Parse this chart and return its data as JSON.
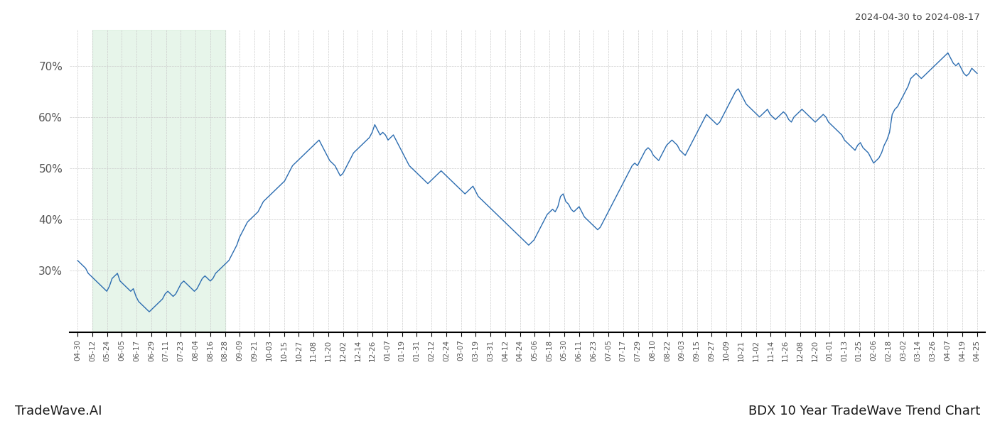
{
  "title_right": "2024-04-30 to 2024-08-17",
  "label_left": "TradeWave.AI",
  "label_right": "BDX 10 Year TradeWave Trend Chart",
  "line_color": "#2b6cb0",
  "shade_color": "#d4edda",
  "shade_alpha": 0.55,
  "background_color": "#ffffff",
  "grid_color": "#cccccc",
  "ylim": [
    18,
    77
  ],
  "yticks": [
    30,
    40,
    50,
    60,
    70
  ],
  "x_labels": [
    "04-30",
    "05-12",
    "05-24",
    "06-05",
    "06-17",
    "06-29",
    "07-11",
    "07-23",
    "08-04",
    "08-16",
    "08-28",
    "09-09",
    "09-21",
    "10-03",
    "10-15",
    "10-27",
    "11-08",
    "11-20",
    "12-02",
    "12-14",
    "12-26",
    "01-07",
    "01-19",
    "01-31",
    "02-12",
    "02-24",
    "03-07",
    "03-19",
    "03-31",
    "04-12",
    "04-24",
    "05-06",
    "05-18",
    "05-30",
    "06-11",
    "06-23",
    "07-05",
    "07-17",
    "07-29",
    "08-10",
    "08-22",
    "09-03",
    "09-15",
    "09-27",
    "10-09",
    "10-21",
    "11-02",
    "11-14",
    "11-26",
    "12-08",
    "12-20",
    "01-01",
    "01-13",
    "01-25",
    "02-06",
    "02-18",
    "03-02",
    "03-14",
    "03-26",
    "04-07",
    "04-19",
    "04-25"
  ],
  "shade_start_label": "05-12",
  "shade_end_label": "08-28",
  "y_values": [
    32.0,
    31.5,
    31.0,
    30.5,
    29.5,
    29.0,
    28.5,
    28.0,
    27.5,
    27.0,
    26.5,
    26.0,
    27.0,
    28.5,
    29.0,
    29.5,
    28.0,
    27.5,
    27.0,
    26.5,
    26.0,
    26.5,
    25.0,
    24.0,
    23.5,
    23.0,
    22.5,
    22.0,
    22.5,
    23.0,
    23.5,
    24.0,
    24.5,
    25.5,
    26.0,
    25.5,
    25.0,
    25.5,
    26.5,
    27.5,
    28.0,
    27.5,
    27.0,
    26.5,
    26.0,
    26.5,
    27.5,
    28.5,
    29.0,
    28.5,
    28.0,
    28.5,
    29.5,
    30.0,
    30.5,
    31.0,
    31.5,
    32.0,
    33.0,
    34.0,
    35.0,
    36.5,
    37.5,
    38.5,
    39.5,
    40.0,
    40.5,
    41.0,
    41.5,
    42.5,
    43.5,
    44.0,
    44.5,
    45.0,
    45.5,
    46.0,
    46.5,
    47.0,
    47.5,
    48.5,
    49.5,
    50.5,
    51.0,
    51.5,
    52.0,
    52.5,
    53.0,
    53.5,
    54.0,
    54.5,
    55.0,
    55.5,
    54.5,
    53.5,
    52.5,
    51.5,
    51.0,
    50.5,
    49.5,
    48.5,
    49.0,
    50.0,
    51.0,
    52.0,
    53.0,
    53.5,
    54.0,
    54.5,
    55.0,
    55.5,
    56.0,
    57.0,
    58.5,
    57.5,
    56.5,
    57.0,
    56.5,
    55.5,
    56.0,
    56.5,
    55.5,
    54.5,
    53.5,
    52.5,
    51.5,
    50.5,
    50.0,
    49.5,
    49.0,
    48.5,
    48.0,
    47.5,
    47.0,
    47.5,
    48.0,
    48.5,
    49.0,
    49.5,
    49.0,
    48.5,
    48.0,
    47.5,
    47.0,
    46.5,
    46.0,
    45.5,
    45.0,
    45.5,
    46.0,
    46.5,
    45.5,
    44.5,
    44.0,
    43.5,
    43.0,
    42.5,
    42.0,
    41.5,
    41.0,
    40.5,
    40.0,
    39.5,
    39.0,
    38.5,
    38.0,
    37.5,
    37.0,
    36.5,
    36.0,
    35.5,
    35.0,
    35.5,
    36.0,
    37.0,
    38.0,
    39.0,
    40.0,
    41.0,
    41.5,
    42.0,
    41.5,
    42.5,
    44.5,
    45.0,
    43.5,
    43.0,
    42.0,
    41.5,
    42.0,
    42.5,
    41.5,
    40.5,
    40.0,
    39.5,
    39.0,
    38.5,
    38.0,
    38.5,
    39.5,
    40.5,
    41.5,
    42.5,
    43.5,
    44.5,
    45.5,
    46.5,
    47.5,
    48.5,
    49.5,
    50.5,
    51.0,
    50.5,
    51.5,
    52.5,
    53.5,
    54.0,
    53.5,
    52.5,
    52.0,
    51.5,
    52.5,
    53.5,
    54.5,
    55.0,
    55.5,
    55.0,
    54.5,
    53.5,
    53.0,
    52.5,
    53.5,
    54.5,
    55.5,
    56.5,
    57.5,
    58.5,
    59.5,
    60.5,
    60.0,
    59.5,
    59.0,
    58.5,
    59.0,
    60.0,
    61.0,
    62.0,
    63.0,
    64.0,
    65.0,
    65.5,
    64.5,
    63.5,
    62.5,
    62.0,
    61.5,
    61.0,
    60.5,
    60.0,
    60.5,
    61.0,
    61.5,
    60.5,
    60.0,
    59.5,
    60.0,
    60.5,
    61.0,
    60.5,
    59.5,
    59.0,
    60.0,
    60.5,
    61.0,
    61.5,
    61.0,
    60.5,
    60.0,
    59.5,
    59.0,
    59.5,
    60.0,
    60.5,
    60.0,
    59.0,
    58.5,
    58.0,
    57.5,
    57.0,
    56.5,
    55.5,
    55.0,
    54.5,
    54.0,
    53.5,
    54.5,
    55.0,
    54.0,
    53.5,
    53.0,
    52.0,
    51.0,
    51.5,
    52.0,
    53.0,
    54.5,
    55.5,
    57.0,
    60.5,
    61.5,
    62.0,
    63.0,
    64.0,
    65.0,
    66.0,
    67.5,
    68.0,
    68.5,
    68.0,
    67.5,
    68.0,
    68.5,
    69.0,
    69.5,
    70.0,
    70.5,
    71.0,
    71.5,
    72.0,
    72.5,
    71.5,
    70.5,
    70.0,
    70.5,
    69.5,
    68.5,
    68.0,
    68.5,
    69.5,
    69.0,
    68.5
  ]
}
